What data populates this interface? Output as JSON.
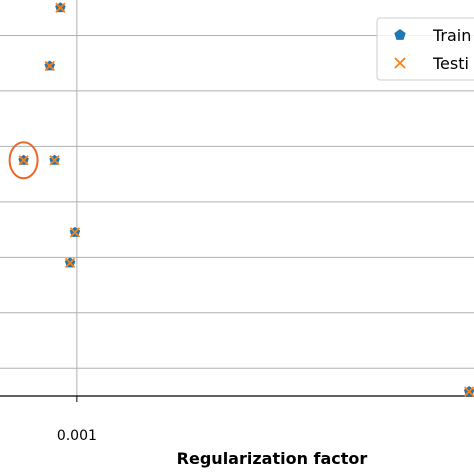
{
  "chart_data": {
    "type": "scatter",
    "xlabel": "Regularization factor",
    "ylabel": "",
    "x_tick_labels": [
      {
        "value": 0.001,
        "label": "0.001"
      }
    ],
    "xlim": [
      0.0,
      0.0051
    ],
    "ylim": [
      0.0,
      7.5
    ],
    "grid": true,
    "legend_position": "top-right",
    "series": [
      {
        "name": "Train",
        "marker": "pentagon",
        "color": "#1f77b4",
        "points": [
          {
            "x": 0.00083,
            "y": 7.0
          },
          {
            "x": 0.00072,
            "y": 5.95
          },
          {
            "x": 0.00045,
            "y": 4.25
          },
          {
            "x": 0.00077,
            "y": 4.25
          },
          {
            "x": 0.00098,
            "y": 2.95
          },
          {
            "x": 0.00093,
            "y": 2.4
          },
          {
            "x": 0.00505,
            "y": 0.08
          }
        ]
      },
      {
        "name": "Testi",
        "marker": "x",
        "color": "#ff7f0e",
        "points": [
          {
            "x": 0.00083,
            "y": 7.0
          },
          {
            "x": 0.00072,
            "y": 5.95
          },
          {
            "x": 0.00045,
            "y": 4.25
          },
          {
            "x": 0.00077,
            "y": 4.25
          },
          {
            "x": 0.00098,
            "y": 2.95
          },
          {
            "x": 0.00093,
            "y": 2.4
          },
          {
            "x": 0.00505,
            "y": 0.08
          }
        ]
      }
    ],
    "highlight": {
      "x": 0.00045,
      "y": 4.25,
      "color": "#e8692a"
    }
  }
}
